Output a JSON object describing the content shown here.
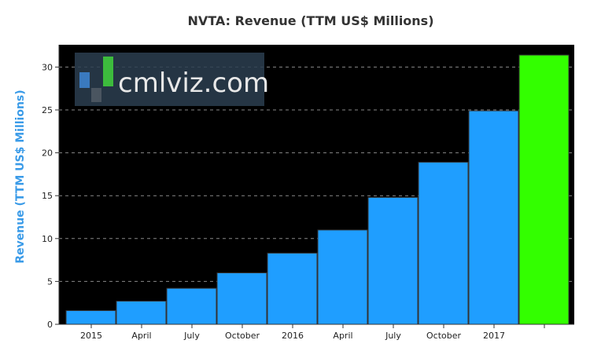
{
  "chart_data": {
    "type": "bar",
    "title": "NVTA: Revenue (TTM US$ Millions)",
    "ylabel": "Revenue (TTM US$ Millions)",
    "xlabel": "",
    "categories": [
      "2015",
      "April",
      "July",
      "October",
      "2016",
      "April",
      "July",
      "October",
      "2017",
      ""
    ],
    "values": [
      1.6,
      2.7,
      4.2,
      6.0,
      8.3,
      11.0,
      14.8,
      18.9,
      24.9,
      31.4
    ],
    "ylim": [
      0,
      32.6
    ],
    "yticks": [
      0,
      5,
      10,
      15,
      20,
      25,
      30
    ],
    "grid": true,
    "colors": {
      "bar": "#1f9eff",
      "highlight_bar": "#33ff00",
      "plot_background": "#000000",
      "title": "#333333",
      "ylabel": "#3a9be8",
      "grid": "#888888"
    },
    "watermark": "cmlviz.com"
  }
}
